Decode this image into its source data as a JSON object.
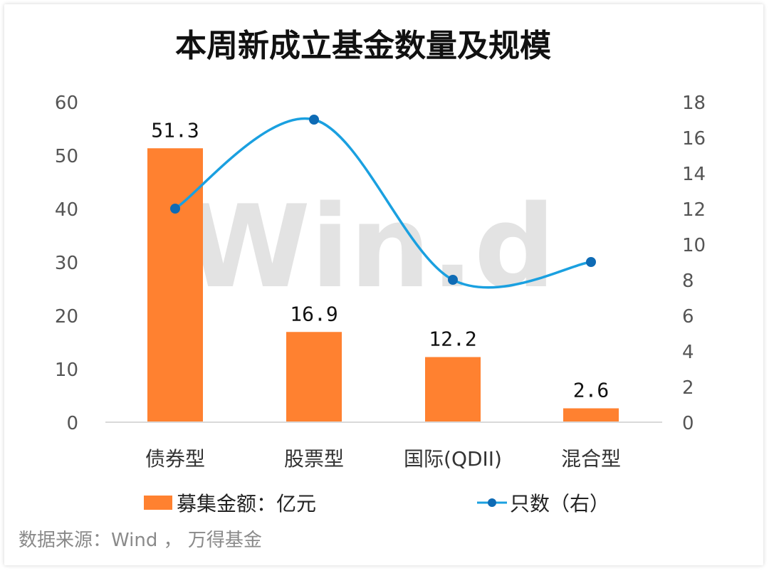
{
  "chart_data": {
    "type": "bar",
    "title": "本周新成立基金数量及规模",
    "categories": [
      "债券型",
      "股票型",
      "国际(QDII)",
      "混合型"
    ],
    "series": [
      {
        "name": "募集金额：亿元",
        "type": "bar",
        "axis": "left",
        "values": [
          51.3,
          16.9,
          12.2,
          2.6
        ],
        "labels": [
          "51.3",
          "16.9",
          "12.2",
          "2.6"
        ],
        "color": "#FF8130"
      },
      {
        "name": "只数（右）",
        "type": "line",
        "axis": "right",
        "smooth": true,
        "values": [
          12,
          17,
          8,
          9
        ],
        "color": "#1AA0E0",
        "marker_color": "#0E6BB5"
      }
    ],
    "y_left": {
      "range": [
        0,
        60
      ],
      "ticks": [
        "0",
        "10",
        "20",
        "30",
        "40",
        "50",
        "60"
      ]
    },
    "y_right": {
      "range": [
        0,
        18
      ],
      "ticks": [
        "0",
        "2",
        "4",
        "6",
        "8",
        "10",
        "12",
        "14",
        "16",
        "18"
      ]
    },
    "grid": false,
    "legend_position": "bottom",
    "watermark": "Win.d",
    "source": "数据来源：Wind ， 万得基金"
  }
}
